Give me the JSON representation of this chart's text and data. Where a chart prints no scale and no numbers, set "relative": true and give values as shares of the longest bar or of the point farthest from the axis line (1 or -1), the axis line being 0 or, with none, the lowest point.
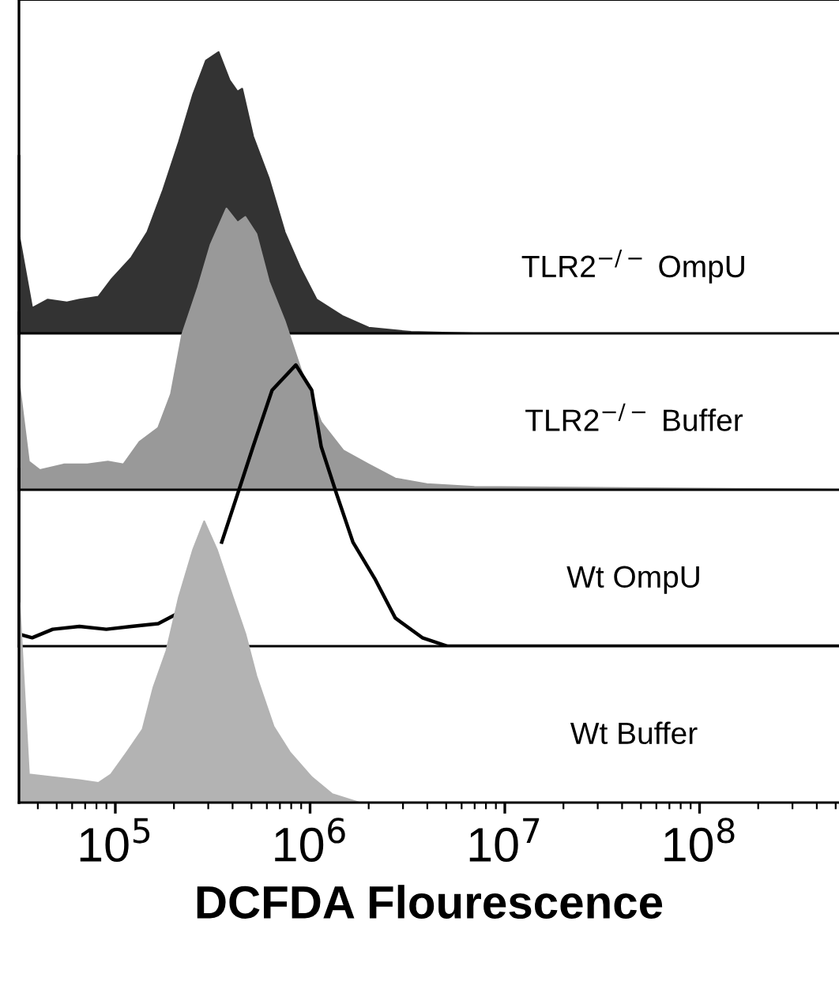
{
  "chart_data": [
    {
      "type": "area",
      "relative": true,
      "log": "x",
      "xlim": [
        32000,
        520000000
      ],
      "tick_labels": false,
      "x": [
        32200,
        37400,
        45000,
        56400,
        65400,
        81800,
        95000,
        121000,
        146000,
        176000,
        212000,
        251000,
        292000,
        339000,
        386000,
        424000,
        448000,
        510000,
        615000,
        741000,
        894000,
        1080000,
        1480000,
        2000000,
        3300000,
        6970000,
        520000000
      ],
      "series": [
        {
          "name": "TLR2$^{−/−}$ OmpU",
          "color": "#333333",
          "values": [
            0.34,
            0.09,
            0.12,
            0.11,
            0.12,
            0.13,
            0.19,
            0.27,
            0.36,
            0.51,
            0.68,
            0.85,
            0.97,
            1.0,
            0.9,
            0.86,
            0.87,
            0.7,
            0.55,
            0.36,
            0.23,
            0.12,
            0.06,
            0.02,
            0.005,
            0,
            0
          ]
        }
      ]
    },
    {
      "type": "area",
      "relative": true,
      "log": "x",
      "xlim": [
        32000,
        520000000
      ],
      "tick_labels": false,
      "x": [
        32200,
        36000,
        41000,
        54300,
        71800,
        91600,
        110000,
        133000,
        166000,
        193000,
        220000,
        266000,
        308000,
        372000,
        424000,
        465000,
        530000,
        615000,
        741000,
        894000,
        1140000,
        1480000,
        2000000,
        2740000,
        3980000,
        6970000,
        520000000
      ],
      "series": [
        {
          "name": "TLR2$^{−/−}$ Buffer",
          "color": "#999999",
          "values": [
            0.37,
            0.1,
            0.07,
            0.09,
            0.09,
            0.1,
            0.09,
            0.17,
            0.22,
            0.34,
            0.55,
            0.72,
            0.87,
            1.0,
            0.95,
            0.97,
            0.91,
            0.74,
            0.6,
            0.43,
            0.24,
            0.14,
            0.09,
            0.04,
            0.02,
            0.01,
            0
          ]
        }
      ]
    },
    {
      "type": "line",
      "relative": true,
      "log": "x",
      "xlim": [
        32000,
        520000000
      ],
      "tick_labels": false,
      "x": [
        33000,
        37400,
        47700,
        65400,
        89900,
        121000,
        166000,
        201000,
        292000,
        352000,
        424000,
        510000,
        638000,
        845000,
        1020000,
        1140000,
        1370000,
        1660000,
        2150000,
        2740000,
        3770000,
        5080000,
        520000000
      ],
      "series": [
        {
          "name": "Wt OmpU",
          "color": "#000000",
          "values": [
            0.04,
            0.03,
            0.06,
            0.07,
            0.06,
            0.07,
            0.08,
            0.11,
            null,
            0.37,
            0.54,
            0.71,
            0.91,
            1.0,
            0.91,
            0.71,
            0.54,
            0.37,
            0.24,
            0.1,
            0.03,
            0,
            0
          ]
        }
      ]
    },
    {
      "type": "area",
      "relative": true,
      "log": "x",
      "xlim": [
        32000,
        520000000
      ],
      "xticks": [
        {
          "value": 100000,
          "label": "10$^{5}$"
        },
        {
          "value": 1000000,
          "label": "10$^{6}$"
        },
        {
          "value": 10000000,
          "label": "10$^{7}$"
        },
        {
          "value": 100000000,
          "label": "10$^{8}$"
        }
      ],
      "xlabel": "DCFDA Flourescence",
      "x": [
        32200,
        36000,
        47700,
        65400,
        81800,
        95000,
        115000,
        138000,
        157000,
        183000,
        212000,
        251000,
        286000,
        332000,
        401000,
        465000,
        530000,
        650000,
        785000,
        1020000,
        1300000,
        1790000,
        520000000
      ],
      "series": [
        {
          "name": "Wt Buffer",
          "color": "#b3b3b3",
          "values": [
            0.71,
            0.1,
            0.09,
            0.08,
            0.07,
            0.1,
            0.18,
            0.26,
            0.41,
            0.54,
            0.73,
            0.9,
            1.0,
            0.9,
            0.73,
            0.6,
            0.45,
            0.27,
            0.18,
            0.09,
            0.03,
            0,
            0
          ]
        }
      ]
    }
  ]
}
